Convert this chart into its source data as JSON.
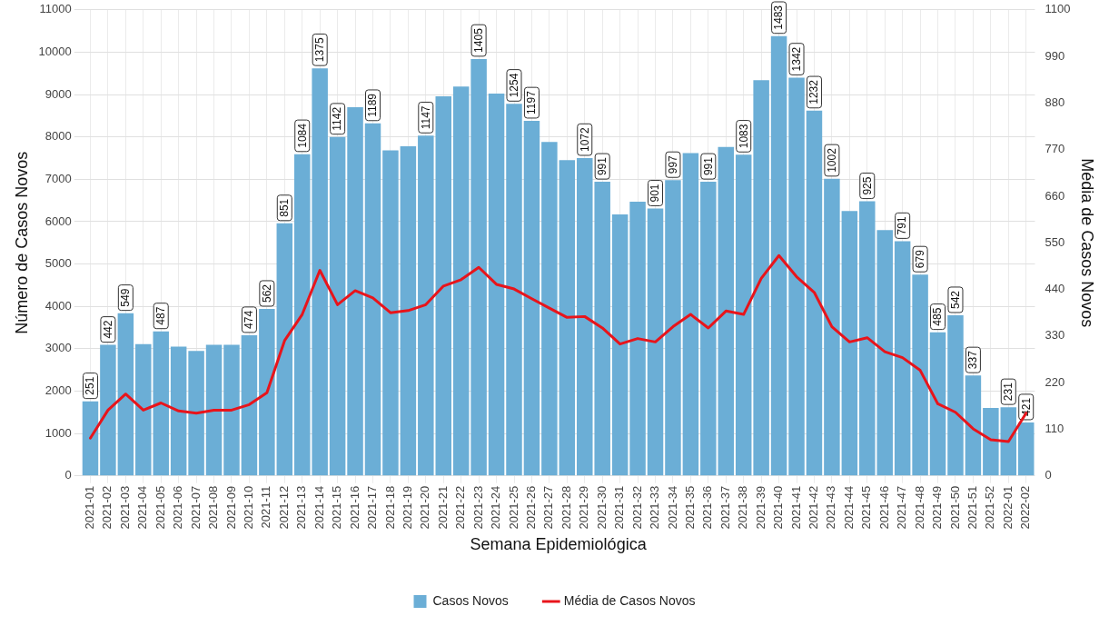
{
  "chart_data": {
    "type": "bar",
    "xlabel": "Semana Epidemiológica",
    "ylabel": "Número de Casos Novos",
    "y2label": "Média de Casos Novos",
    "categories": [
      "2021-01",
      "2021-02",
      "2021-03",
      "2021-04",
      "2021-05",
      "2021-06",
      "2021-07",
      "2021-08",
      "2021-09",
      "2021-10",
      "2021-11",
      "2021-12",
      "2021-13",
      "2021-14",
      "2021-15",
      "2021-16",
      "2021-17",
      "2021-18",
      "2021-19",
      "2021-20",
      "2021-21",
      "2021-22",
      "2021-23",
      "2021-24",
      "2021-25",
      "2021-26",
      "2021-27",
      "2021-28",
      "2021-29",
      "2021-30",
      "2021-31",
      "2021-32",
      "2021-33",
      "2021-34",
      "2021-35",
      "2021-36",
      "2021-37",
      "2021-38",
      "2021-39",
      "2021-40",
      "2021-41",
      "2021-42",
      "2021-43",
      "2021-44",
      "2021-45",
      "2021-46",
      "2021-47",
      "2021-48",
      "2021-49",
      "2021-50",
      "2021-51",
      "2021-52",
      "2022-01",
      "2022-02"
    ],
    "series": [
      {
        "name": "Casos Novos",
        "color": "#6baed6",
        "values": [
          1760,
          3090,
          3840,
          3110,
          3410,
          3050,
          2950,
          3090,
          3090,
          3320,
          3940,
          5960,
          7590,
          9620,
          8000,
          8700,
          8320,
          7680,
          7780,
          8030,
          8960,
          9190,
          9840,
          9020,
          8780,
          8380,
          7880,
          7450,
          7500,
          6940,
          6170,
          6470,
          6310,
          6980,
          7620,
          6940,
          7760,
          7580,
          9340,
          10380,
          9400,
          8620,
          7010,
          6250,
          6480,
          5800,
          5540,
          4750,
          3390,
          3790,
          2370,
          1600,
          1620,
          1260
        ]
      },
      {
        "name": "Média de Casos Novos",
        "type": "line",
        "axis": "y2",
        "color": "#e8141b",
        "values": [
          89,
          155,
          193,
          155,
          172,
          153,
          148,
          155,
          155,
          168,
          196,
          319,
          381,
          485,
          404,
          437,
          420,
          385,
          390,
          404,
          448,
          463,
          492,
          452,
          441,
          418,
          396,
          374,
          376,
          349,
          311,
          324,
          316,
          352,
          381,
          349,
          389,
          381,
          466,
          520,
          470,
          433,
          352,
          316,
          326,
          293,
          279,
          249,
          170,
          150,
          111,
          85,
          81,
          148
        ]
      }
    ],
    "annotations": [
      {
        "text": "251",
        "x": "2021-01",
        "y": 1760
      },
      {
        "text": "442",
        "x": "2021-02",
        "y": 3090
      },
      {
        "text": "549",
        "x": "2021-03",
        "y": 3840
      },
      {
        "text": "487",
        "x": "2021-05",
        "y": 3410
      },
      {
        "text": "474",
        "x": "2021-10",
        "y": 3320
      },
      {
        "text": "562",
        "x": "2021-11",
        "y": 3940
      },
      {
        "text": "851",
        "x": "2021-12",
        "y": 5960
      },
      {
        "text": "1084",
        "x": "2021-13",
        "y": 7590
      },
      {
        "text": "1375",
        "x": "2021-14",
        "y": 9620
      },
      {
        "text": "1142",
        "x": "2021-15",
        "y": 8000
      },
      {
        "text": "1189",
        "x": "2021-17",
        "y": 8320
      },
      {
        "text": "1147",
        "x": "2021-20",
        "y": 8030
      },
      {
        "text": "1405",
        "x": "2021-23",
        "y": 9840
      },
      {
        "text": "1254",
        "x": "2021-25",
        "y": 8780
      },
      {
        "text": "1197",
        "x": "2021-26",
        "y": 8380
      },
      {
        "text": "1072",
        "x": "2021-29",
        "y": 7500
      },
      {
        "text": "991",
        "x": "2021-30",
        "y": 6940
      },
      {
        "text": "901",
        "x": "2021-33",
        "y": 6310
      },
      {
        "text": "997",
        "x": "2021-34",
        "y": 6980
      },
      {
        "text": "991",
        "x": "2021-36",
        "y": 6940
      },
      {
        "text": "1083",
        "x": "2021-38",
        "y": 7580
      },
      {
        "text": "1483",
        "x": "2021-40",
        "y": 10380
      },
      {
        "text": "1342",
        "x": "2021-41",
        "y": 9400
      },
      {
        "text": "1232",
        "x": "2021-42",
        "y": 8620
      },
      {
        "text": "1002",
        "x": "2021-43",
        "y": 7010
      },
      {
        "text": "925",
        "x": "2021-45",
        "y": 6480
      },
      {
        "text": "791",
        "x": "2021-47",
        "y": 5540
      },
      {
        "text": "679",
        "x": "2021-48",
        "y": 4750
      },
      {
        "text": "485",
        "x": "2021-49",
        "y": 3390
      },
      {
        "text": "542",
        "x": "2021-50",
        "y": 3790
      },
      {
        "text": "337",
        "x": "2021-51",
        "y": 2370
      },
      {
        "text": "231",
        "x": "2022-01",
        "y": 1620
      },
      {
        "text": "421",
        "x": "2022-02",
        "y": 1260
      }
    ],
    "ylim": [
      0,
      11000
    ],
    "yticks": [
      0,
      1000,
      2000,
      3000,
      4000,
      5000,
      6000,
      7000,
      8000,
      9000,
      10000,
      11000
    ],
    "y2lim": [
      0,
      1100
    ],
    "y2ticks": [
      0,
      110,
      220,
      330,
      440,
      550,
      660,
      770,
      880,
      990,
      1100
    ],
    "grid": true,
    "legend": "bottom",
    "marker": "none",
    "line_style": "solid"
  }
}
